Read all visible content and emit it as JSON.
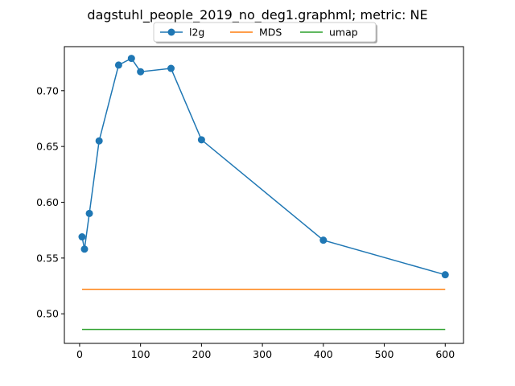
{
  "chart_data": {
    "type": "line",
    "title": "dagstuhl_people_2019_no_deg1.graphml; metric: NE",
    "xlabel": "",
    "ylabel": "",
    "xlim": [
      -25,
      630
    ],
    "ylim": [
      0.4735,
      0.7395
    ],
    "x_ticks": [
      0,
      100,
      200,
      300,
      400,
      500,
      600
    ],
    "x_tick_labels": [
      "0",
      "100",
      "200",
      "300",
      "400",
      "500",
      "600"
    ],
    "y_ticks": [
      0.5,
      0.55,
      0.6,
      0.65,
      0.7
    ],
    "y_tick_labels": [
      "0.50",
      "0.55",
      "0.60",
      "0.65",
      "0.70"
    ],
    "grid": false,
    "legend_position": "top-center",
    "series": [
      {
        "name": "l2g",
        "color": "#1f77b4",
        "marker": "circle",
        "x": [
          4,
          8,
          16,
          32,
          64,
          85,
          100,
          150,
          200,
          400,
          600
        ],
        "y": [
          0.569,
          0.558,
          0.59,
          0.655,
          0.723,
          0.729,
          0.717,
          0.72,
          0.656,
          0.566,
          0.535
        ]
      },
      {
        "name": "MDS",
        "color": "#ff7f0e",
        "marker": "none",
        "x": [
          4,
          600
        ],
        "y": [
          0.522,
          0.522
        ]
      },
      {
        "name": "umap",
        "color": "#2ca02c",
        "marker": "none",
        "x": [
          4,
          600
        ],
        "y": [
          0.486,
          0.486
        ]
      }
    ]
  }
}
